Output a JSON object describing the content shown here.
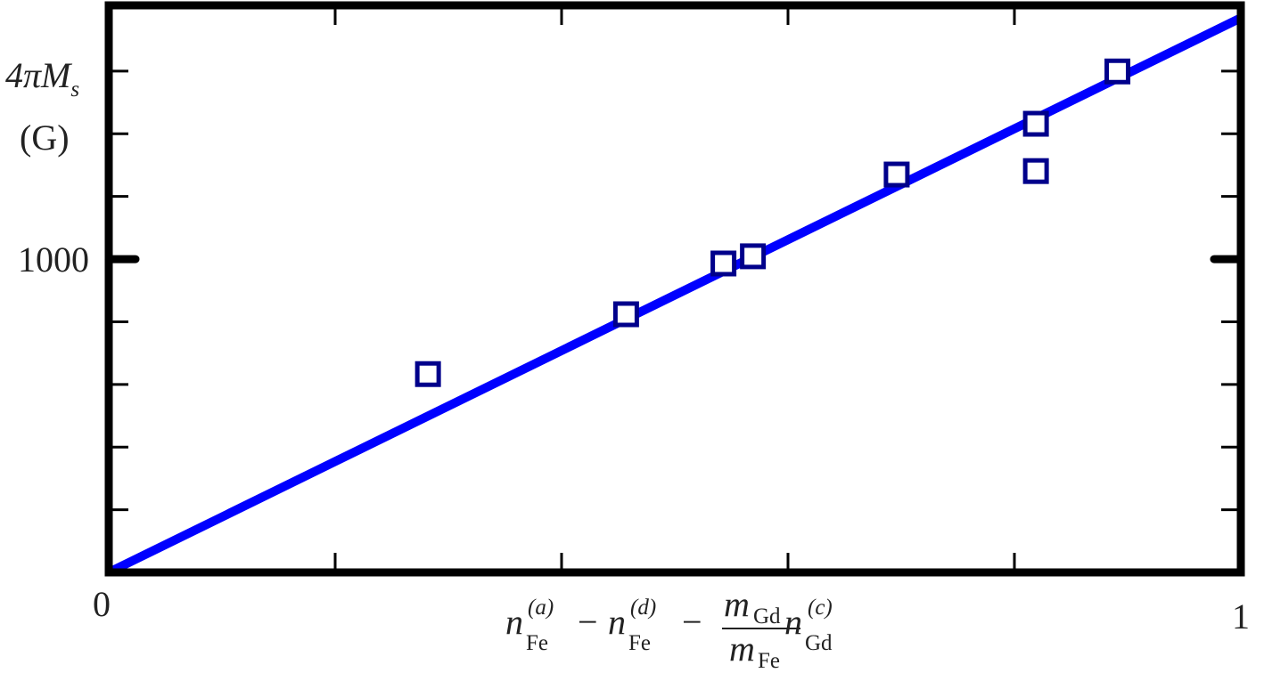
{
  "chart_data": {
    "type": "scatter",
    "ylabel": {
      "line1_base": "4πM",
      "line1_sub": "s",
      "line2": "(G)"
    },
    "xlabel": {
      "term1": {
        "base": "n",
        "sub": "Fe",
        "sup": "(a)"
      },
      "minus1": "−",
      "term2": {
        "base": "n",
        "sub": "Fe",
        "sup": "(d)"
      },
      "minus2": "−",
      "fraction": {
        "num_base": "m",
        "num_sub": "Gd",
        "den_base": "m",
        "den_sub": "Fe"
      },
      "term3": {
        "base": "n",
        "sub": "Gd",
        "sup": "(c)"
      }
    },
    "x": [
      0.282,
      0.457,
      0.543,
      0.569,
      0.696,
      0.819,
      0.819,
      0.891
    ],
    "values": [
      633,
      824,
      986,
      1009,
      1270,
      1432,
      1281,
      1599
    ],
    "marker_color": "#00008b",
    "fit_line": {
      "x": [
        0,
        1
      ],
      "values": [
        0,
        1770
      ],
      "color": "#0000ff"
    },
    "xlim": [
      0,
      1
    ],
    "xticks": [
      0,
      1
    ],
    "xminor_ticks": [
      0.2,
      0.4,
      0.6,
      0.8
    ],
    "ylim": [
      0,
      1810
    ],
    "yticks": [
      1000
    ],
    "yminor_ticks": [
      200,
      400,
      600,
      800,
      1200,
      1400,
      1600
    ]
  }
}
